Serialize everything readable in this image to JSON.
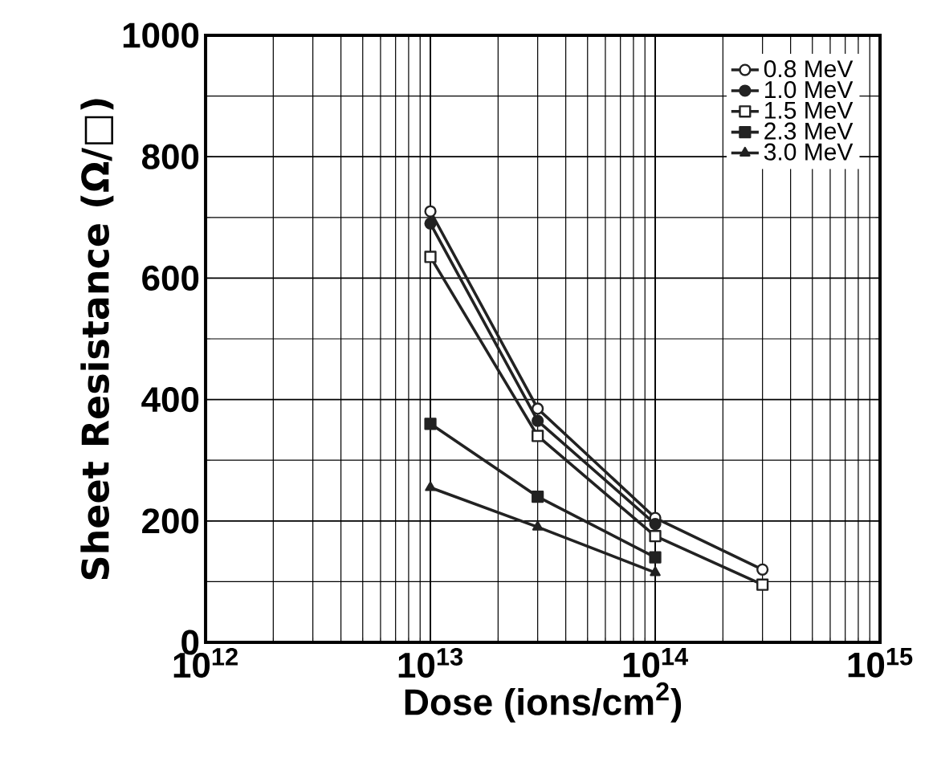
{
  "chart_data": {
    "type": "line",
    "xlabel": "Dose (ions/cm$^{2}$)",
    "ylabel": "Sheet Resistance (Ω/□)",
    "log": "x",
    "xlim": [
      1000000000000.0,
      1000000000000000.0
    ],
    "ylim": [
      0,
      1000
    ],
    "xticks": [
      {
        "value": 1000000000000.0,
        "label": "10$^{12}$"
      },
      {
        "value": 10000000000000.0,
        "label": "10$^{13}$"
      },
      {
        "value": 100000000000000.0,
        "label": "10$^{14}$"
      },
      {
        "value": 1000000000000000.0,
        "label": "10$^{15}$"
      }
    ],
    "yticks": [
      0,
      200,
      400,
      600,
      800,
      1000
    ],
    "grid": true,
    "legend": "top right",
    "line_style": "solid",
    "series": [
      {
        "name": "0.8 MeV",
        "color": "#222222",
        "marker": "circle",
        "x": [
          10000000000000.0,
          30000000000000.0,
          100000000000000.0,
          300000000000000.0
        ],
        "values": [
          710,
          385,
          205,
          120
        ]
      },
      {
        "name": "1.0 MeV",
        "color": "#222222",
        "marker": "circle",
        "x": [
          10000000000000.0,
          30000000000000.0,
          100000000000000.0
        ],
        "values": [
          690,
          365,
          195
        ]
      },
      {
        "name": "1.5 MeV",
        "color": "#222222",
        "marker": "square",
        "x": [
          10000000000000.0,
          30000000000000.0,
          100000000000000.0,
          300000000000000.0
        ],
        "values": [
          635,
          340,
          175,
          95
        ]
      },
      {
        "name": "2.3 MeV",
        "color": "#222222",
        "marker": "square",
        "x": [
          10000000000000.0,
          30000000000000.0,
          100000000000000.0
        ],
        "values": [
          360,
          240,
          140
        ]
      },
      {
        "name": "3.0 MeV",
        "color": "#222222",
        "marker": "triangle",
        "x": [
          10000000000000.0,
          30000000000000.0,
          100000000000000.0
        ],
        "values": [
          255,
          190,
          115
        ]
      }
    ]
  }
}
